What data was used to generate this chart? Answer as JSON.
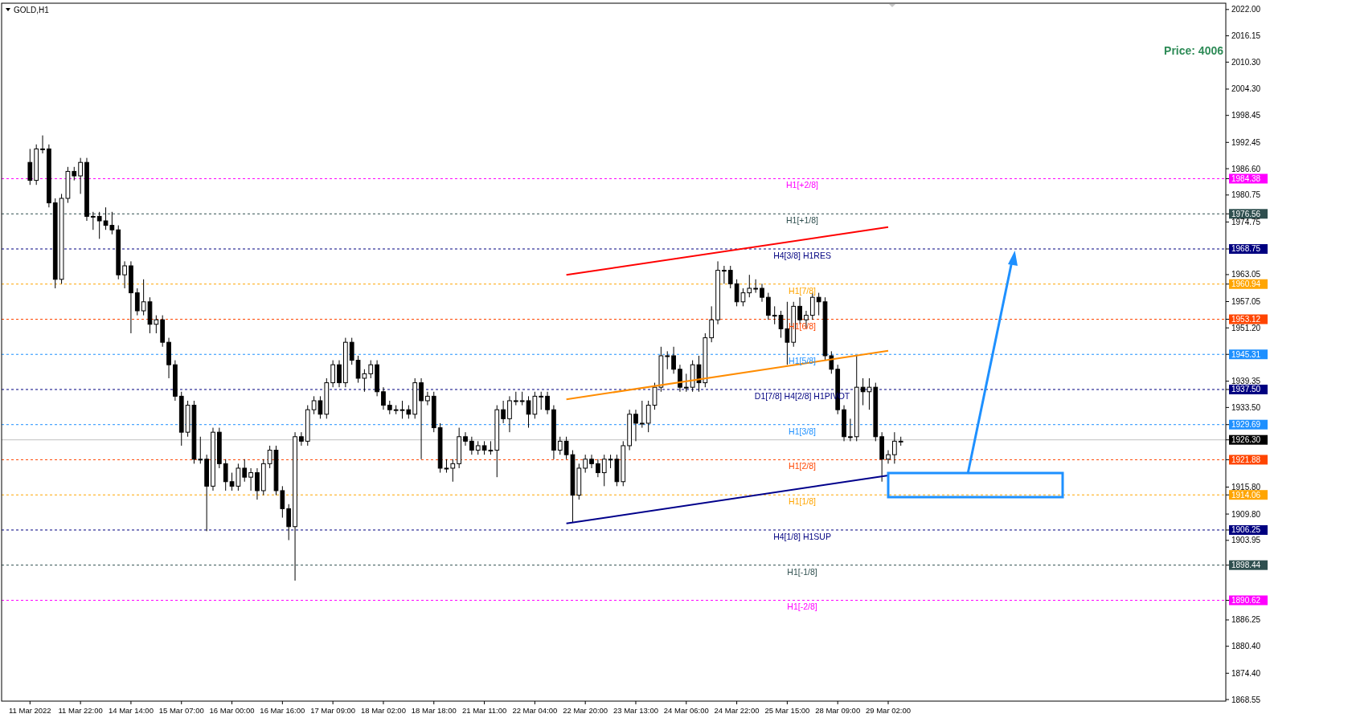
{
  "chart_data": {
    "type": "candlestick",
    "title": "GOLD,H1",
    "annotations": [
      "Price: 4006"
    ],
    "categories": [
      null,
      null,
      null,
      null,
      "11 Mar 2022",
      null,
      null,
      null,
      null,
      null,
      null,
      null,
      "11 Mar 22:00",
      null,
      null,
      null,
      null,
      null,
      null,
      null,
      "14 Mar 14:00",
      null,
      null,
      null,
      null,
      null,
      null,
      null,
      "15 Mar 07:00",
      null,
      null,
      null,
      null,
      null,
      null,
      null,
      "16 Mar 00:00",
      null,
      null,
      null,
      null,
      null,
      null,
      null,
      "16 Mar 16:00",
      null,
      null,
      null,
      null,
      null,
      null,
      null,
      "17 Mar 09:00",
      null,
      null,
      null,
      null,
      null,
      null,
      null,
      "18 Mar 02:00",
      null,
      null,
      null,
      null,
      null,
      null,
      null,
      "18 Mar 18:00",
      null,
      null,
      null,
      null,
      null,
      null,
      null,
      "21 Mar 11:00",
      null,
      null,
      null,
      null,
      null,
      null,
      null,
      "22 Mar 04:00",
      null,
      null,
      null,
      null,
      null,
      null,
      null,
      "22 Mar 20:00",
      null,
      null,
      null,
      null,
      null,
      null,
      null,
      "23 Mar 13:00",
      null,
      null,
      null,
      null,
      null,
      null,
      null,
      "24 Mar 06:00",
      null,
      null,
      null,
      null,
      null,
      null,
      null,
      "24 Mar 22:00",
      null,
      null,
      null,
      null,
      null,
      null,
      null,
      "25 Mar 15:00",
      null,
      null,
      null,
      null,
      null,
      null,
      null,
      "28 Mar 09:00",
      null,
      null,
      null,
      null,
      null,
      null,
      null,
      "29 Mar 02:00",
      null,
      null,
      null,
      null,
      null,
      null,
      null,
      null,
      null,
      null,
      null,
      null,
      null,
      null,
      null,
      null,
      null,
      null,
      null,
      null,
      null,
      null,
      null,
      null,
      null,
      null,
      null,
      null,
      null,
      null,
      null,
      null,
      null,
      null,
      null,
      null,
      null,
      null,
      null,
      null,
      null,
      null,
      null,
      null,
      null,
      null,
      null,
      null,
      null,
      null,
      null,
      null,
      null
    ],
    "ohlc": [
      null,
      null,
      null,
      null,
      [
        1988,
        1991,
        1983,
        1984
      ],
      [
        1984,
        1992,
        1983,
        1991
      ],
      [
        1991,
        1994,
        1990,
        1991
      ],
      [
        1991,
        1992,
        1978,
        1979
      ],
      [
        1979,
        1980,
        1960,
        1962
      ],
      [
        1962,
        1981,
        1961,
        1980
      ],
      [
        1980,
        1987,
        1979,
        1986
      ],
      [
        1986,
        1987,
        1984,
        1985
      ],
      [
        1985,
        1989,
        1981,
        1988
      ],
      [
        1988,
        1989,
        1975,
        1976
      ],
      [
        1976,
        1977,
        1973,
        1976
      ],
      [
        1976,
        1977,
        1971,
        1975
      ],
      [
        1975,
        1978,
        1973,
        1974
      ],
      [
        1974,
        1977,
        1972,
        1973
      ],
      [
        1973,
        1974,
        1962,
        1963
      ],
      [
        1963,
        1966,
        1960,
        1965
      ],
      [
        1965,
        1966,
        1950,
        1959
      ],
      [
        1959,
        1960,
        1954,
        1955
      ],
      [
        1955,
        1962,
        1954,
        1957
      ],
      [
        1957,
        1958,
        1950,
        1952
      ],
      [
        1952,
        1954,
        1950,
        1953
      ],
      [
        1953,
        1954,
        1947,
        1948
      ],
      [
        1948,
        1949,
        1940,
        1943
      ],
      [
        1943,
        1944,
        1935,
        1936
      ],
      [
        1936,
        1937,
        1925,
        1928
      ],
      [
        1928,
        1935,
        1927,
        1934
      ],
      [
        1934,
        1935,
        1921,
        1922
      ],
      [
        1922,
        1927,
        1921,
        1922
      ],
      [
        1922,
        1923,
        1906,
        1916
      ],
      [
        1916,
        1929,
        1915,
        1928
      ],
      [
        1928,
        1929,
        1920,
        1921
      ],
      [
        1921,
        1922,
        1915,
        1917
      ],
      [
        1917,
        1919,
        1915,
        1916
      ],
      [
        1916,
        1921,
        1915,
        1920
      ],
      [
        1920,
        1922,
        1917,
        1918
      ],
      [
        1918,
        1920,
        1915,
        1919
      ],
      [
        1919,
        1920,
        1913,
        1915
      ],
      [
        1915,
        1922,
        1914,
        1921
      ],
      [
        1921,
        1925,
        1920,
        1924
      ],
      [
        1924,
        1925,
        1914,
        1915
      ],
      [
        1915,
        1916,
        1909,
        1911
      ],
      [
        1911,
        1912,
        1904,
        1907
      ],
      [
        1907,
        1928,
        1895,
        1927
      ],
      [
        1927,
        1928,
        1925,
        1926
      ],
      [
        1926,
        1934,
        1925,
        1933
      ],
      [
        1933,
        1936,
        1932,
        1935
      ],
      [
        1935,
        1936,
        1931,
        1932
      ],
      [
        1932,
        1940,
        1931,
        1939
      ],
      [
        1939,
        1944,
        1938,
        1943
      ],
      [
        1943,
        1944,
        1938,
        1939
      ],
      [
        1939,
        1949,
        1938,
        1948
      ],
      [
        1948,
        1949,
        1943,
        1944
      ],
      [
        1944,
        1945,
        1939,
        1940
      ],
      [
        1940,
        1942,
        1937,
        1941
      ],
      [
        1941,
        1944,
        1940,
        1943
      ],
      [
        1943,
        1944,
        1936,
        1937
      ],
      [
        1937,
        1938,
        1933,
        1934
      ],
      [
        1934,
        1935,
        1932,
        1933
      ],
      [
        1933,
        1934,
        1932,
        1933
      ],
      [
        1933,
        1935,
        1931,
        1933
      ],
      [
        1933,
        1934,
        1931,
        1932
      ],
      [
        1932,
        1940,
        1931,
        1939
      ],
      [
        1939,
        1940,
        1922,
        1935
      ],
      [
        1935,
        1937,
        1934,
        1936
      ],
      [
        1936,
        1937,
        1928,
        1929
      ],
      [
        1929,
        1930,
        1919,
        1920
      ],
      [
        1920,
        1922,
        1919,
        1920
      ],
      [
        1920,
        1922,
        1917,
        1921
      ],
      [
        1921,
        1929,
        1920,
        1927
      ],
      [
        1927,
        1928,
        1925,
        1926
      ],
      [
        1926,
        1927,
        1923,
        1924
      ],
      [
        1924,
        1926,
        1923,
        1925
      ],
      [
        1925,
        1926,
        1923,
        1924
      ],
      [
        1924,
        1926,
        1923,
        1924
      ],
      [
        1924,
        1934,
        1918,
        1933
      ],
      [
        1933,
        1935,
        1930,
        1931
      ],
      [
        1931,
        1936,
        1928,
        1935
      ],
      [
        1935,
        1937,
        1934,
        1935
      ],
      [
        1935,
        1937,
        1934,
        1935
      ],
      [
        1935,
        1936,
        1929,
        1932
      ],
      [
        1932,
        1937,
        1931,
        1936
      ],
      [
        1936,
        1937,
        1933,
        1936
      ],
      [
        1936,
        1937,
        1932,
        1933
      ],
      [
        1933,
        1934,
        1922,
        1924
      ],
      [
        1924,
        1927,
        1923,
        1926
      ],
      [
        1926,
        1927,
        1922,
        1923
      ],
      [
        1923,
        1924,
        1908,
        1914
      ],
      [
        1914,
        1921,
        1913,
        1920
      ],
      [
        1920,
        1923,
        1919,
        1922
      ],
      [
        1922,
        1923,
        1920,
        1921
      ],
      [
        1921,
        1922,
        1918,
        1919
      ],
      [
        1919,
        1923,
        1916,
        1922
      ],
      [
        1922,
        1923,
        1920,
        1922
      ],
      [
        1922,
        1923,
        1916,
        1917
      ],
      [
        1917,
        1926,
        1916,
        1925
      ],
      [
        1925,
        1933,
        1924,
        1932
      ],
      [
        1932,
        1933,
        1926,
        1930
      ],
      [
        1930,
        1935,
        1929,
        1930
      ],
      [
        1930,
        1935,
        1928,
        1934
      ],
      [
        1934,
        1939,
        1933,
        1938
      ],
      [
        1938,
        1947,
        1937,
        1945
      ],
      [
        1945,
        1946,
        1942,
        1945
      ],
      [
        1945,
        1947,
        1941,
        1942
      ],
      [
        1942,
        1943,
        1937,
        1938
      ],
      [
        1938,
        1941,
        1937,
        1938
      ],
      [
        1938,
        1944,
        1937,
        1943
      ],
      [
        1943,
        1945,
        1937,
        1939
      ],
      [
        1939,
        1950,
        1938,
        1949
      ],
      [
        1949,
        1956,
        1948,
        1953
      ],
      [
        1953,
        1966,
        1952,
        1964
      ],
      [
        1964,
        1965,
        1961,
        1964
      ],
      [
        1964,
        1965,
        1960,
        1961
      ],
      [
        1961,
        1962,
        1956,
        1957
      ],
      [
        1957,
        1960,
        1956,
        1959
      ],
      [
        1959,
        1963,
        1958,
        1960
      ],
      [
        1960,
        1962,
        1959,
        1960
      ],
      [
        1960,
        1961,
        1957,
        1958
      ],
      [
        1958,
        1959,
        1953,
        1954
      ],
      [
        1954,
        1956,
        1952,
        1954
      ],
      [
        1954,
        1955,
        1949,
        1951
      ],
      [
        1951,
        1957,
        1943,
        1948
      ],
      [
        1948,
        1957,
        1947,
        1956
      ],
      [
        1956,
        1958,
        1952,
        1953
      ],
      [
        1953,
        1955,
        1951,
        1954
      ],
      [
        1954,
        1959,
        1953,
        1958
      ],
      [
        1958,
        1959,
        1954,
        1957
      ],
      [
        1957,
        1958,
        1944,
        1945
      ],
      [
        1945,
        1946,
        1941,
        1942
      ],
      [
        1942,
        1943,
        1932,
        1933
      ],
      [
        1933,
        1934,
        1926,
        1927
      ],
      [
        1927,
        1931,
        1926,
        1927
      ],
      [
        1927,
        1945,
        1926,
        1938
      ],
      [
        1938,
        1940,
        1934,
        1937
      ],
      [
        1937,
        1940,
        1933,
        1938
      ],
      [
        1938,
        1939,
        1926,
        1927
      ],
      [
        1927,
        1928,
        1917,
        1922
      ],
      [
        1922,
        1924,
        1921,
        1923
      ],
      [
        1923,
        1928,
        1921,
        1926
      ],
      [
        1926,
        1927,
        1925,
        1926
      ],
      null,
      null,
      null,
      null,
      null,
      null,
      null,
      null,
      null,
      null,
      null,
      null,
      null,
      null,
      null,
      null,
      null,
      null,
      null,
      null,
      null,
      null,
      null,
      null,
      null,
      null,
      null,
      null,
      null,
      null,
      null,
      null,
      null,
      null,
      null,
      null,
      null,
      null,
      null,
      null,
      null,
      null,
      null,
      null,
      null,
      null,
      null,
      null,
      null,
      null,
      null
    ],
    "series": [
      {
        "type": "line",
        "color": "#ff0000",
        "values": [
          null,
          null,
          null,
          null,
          null,
          null,
          null,
          null,
          null,
          null,
          null,
          null,
          null,
          null,
          null,
          null,
          null,
          null,
          null,
          null,
          null,
          null,
          null,
          null,
          null,
          null,
          null,
          null,
          null,
          null,
          null,
          null,
          null,
          null,
          null,
          null,
          null,
          null,
          null,
          null,
          null,
          null,
          null,
          null,
          null,
          null,
          null,
          null,
          null,
          null,
          null,
          null,
          null,
          null,
          null,
          null,
          null,
          null,
          null,
          null,
          null,
          null,
          null,
          null,
          null,
          null,
          null,
          null,
          null,
          null,
          null,
          null,
          null,
          null,
          null,
          null,
          null,
          null,
          null,
          null,
          null,
          null,
          null,
          null,
          null,
          null,
          null,
          null,
          null,
          1963,
          null,
          null,
          null,
          null,
          null,
          null,
          null,
          null,
          null,
          null,
          null,
          null,
          null,
          null,
          null,
          null,
          null,
          null,
          null,
          null,
          null,
          null,
          null,
          null,
          null,
          null,
          null,
          null,
          null,
          null,
          null,
          null,
          null,
          null,
          null,
          null,
          null,
          null,
          null,
          null,
          null,
          null,
          null,
          null,
          null,
          null,
          null,
          null,
          null,
          null,
          1973.6,
          null,
          null,
          null,
          null,
          null,
          null,
          null,
          null,
          null,
          null,
          null,
          null,
          null,
          null,
          null,
          null,
          null,
          null,
          null,
          null,
          null,
          null,
          null,
          null,
          null,
          null,
          null,
          null,
          null,
          null,
          null,
          null,
          null,
          null,
          null,
          null,
          null,
          null,
          null,
          null,
          null,
          null,
          null,
          null,
          null,
          null,
          null,
          null,
          null,
          null,
          null,
          null,
          null
        ]
      },
      {
        "type": "line",
        "color": "#ff8c00",
        "values": [
          null,
          null,
          null,
          null,
          null,
          null,
          null,
          null,
          null,
          null,
          null,
          null,
          null,
          null,
          null,
          null,
          null,
          null,
          null,
          null,
          null,
          null,
          null,
          null,
          null,
          null,
          null,
          null,
          null,
          null,
          null,
          null,
          null,
          null,
          null,
          null,
          null,
          null,
          null,
          null,
          null,
          null,
          null,
          null,
          null,
          null,
          null,
          null,
          null,
          null,
          null,
          null,
          null,
          null,
          null,
          null,
          null,
          null,
          null,
          null,
          null,
          null,
          null,
          null,
          null,
          null,
          null,
          null,
          null,
          null,
          null,
          null,
          null,
          null,
          null,
          null,
          null,
          null,
          null,
          null,
          null,
          null,
          null,
          null,
          null,
          null,
          null,
          null,
          null,
          1935.3,
          null,
          null,
          null,
          null,
          null,
          null,
          null,
          null,
          null,
          null,
          null,
          null,
          null,
          null,
          null,
          null,
          null,
          null,
          null,
          null,
          null,
          null,
          null,
          null,
          null,
          null,
          null,
          null,
          null,
          null,
          null,
          null,
          null,
          null,
          null,
          null,
          null,
          null,
          null,
          null,
          null,
          null,
          null,
          null,
          null,
          null,
          null,
          null,
          null,
          null,
          1946.1,
          null,
          null,
          null,
          null,
          null,
          null,
          null,
          null,
          null,
          null,
          null,
          null,
          null,
          null,
          null,
          null,
          null,
          null,
          null,
          null,
          null,
          null,
          null,
          null,
          null,
          null,
          null,
          null,
          null,
          null,
          null,
          null,
          null,
          null,
          null,
          null,
          null,
          null,
          null,
          null,
          null,
          null,
          null,
          null,
          null,
          null,
          null,
          null,
          null,
          null,
          null,
          null,
          null
        ]
      },
      {
        "type": "line",
        "color": "#00008b",
        "values": [
          null,
          null,
          null,
          null,
          null,
          null,
          null,
          null,
          null,
          null,
          null,
          null,
          null,
          null,
          null,
          null,
          null,
          null,
          null,
          null,
          null,
          null,
          null,
          null,
          null,
          null,
          null,
          null,
          null,
          null,
          null,
          null,
          null,
          null,
          null,
          null,
          null,
          null,
          null,
          null,
          null,
          null,
          null,
          null,
          null,
          null,
          null,
          null,
          null,
          null,
          null,
          null,
          null,
          null,
          null,
          null,
          null,
          null,
          null,
          null,
          null,
          null,
          null,
          null,
          null,
          null,
          null,
          null,
          null,
          null,
          null,
          null,
          null,
          null,
          null,
          null,
          null,
          null,
          null,
          null,
          null,
          null,
          null,
          null,
          null,
          null,
          null,
          null,
          null,
          1907.7,
          null,
          null,
          null,
          null,
          null,
          null,
          null,
          null,
          null,
          null,
          null,
          null,
          null,
          null,
          null,
          null,
          null,
          null,
          null,
          null,
          null,
          null,
          null,
          null,
          null,
          null,
          null,
          null,
          null,
          null,
          null,
          null,
          null,
          null,
          null,
          null,
          null,
          null,
          null,
          null,
          null,
          null,
          null,
          null,
          null,
          null,
          null,
          null,
          null,
          null,
          1918.4,
          null,
          null,
          null,
          null,
          null,
          null,
          null,
          null,
          null,
          null,
          null,
          null,
          null,
          null,
          null,
          null,
          null,
          null,
          null,
          null,
          null,
          null,
          null,
          null,
          null,
          null,
          null,
          null,
          null,
          null,
          null,
          null,
          null,
          null,
          null,
          null,
          null,
          null,
          null,
          null,
          null,
          null,
          null,
          null,
          null,
          null,
          null,
          null,
          null,
          null,
          null,
          null,
          null
        ]
      }
    ],
    "ylim": [
      1868.2,
      2023.4
    ],
    "yticks": [
      {
        "value": 2022,
        "label": "2022.00"
      },
      2016.15,
      {
        "value": 2010.3,
        "label": "2010.30"
      },
      {
        "value": 2004.3,
        "label": "2004.30"
      },
      1998.45,
      1992.45,
      {
        "value": 1986.6,
        "label": "1986.60"
      },
      1984.38,
      1980.75,
      1976.56,
      1974.75,
      1968.75,
      1963.05,
      1960.94,
      1957.05,
      1953.12,
      {
        "value": 1951.2,
        "label": "1951.20"
      },
      1945.31,
      1939.35,
      {
        "value": 1937.5,
        "label": "1937.50"
      },
      {
        "value": 1933.5,
        "label": "1933.50"
      },
      1929.69,
      {
        "value": 1926.3,
        "label": "1926.30"
      },
      1921.88,
      {
        "value": 1915.8,
        "label": "1915.80"
      },
      1914.06,
      {
        "value": 1909.8,
        "label": "1909.80"
      },
      1906.25,
      1903.95,
      1898.44,
      1890.62,
      1886.25,
      {
        "value": 1880.4,
        "label": "1880.40"
      },
      {
        "value": 1874.4,
        "label": "1874.40"
      },
      1868.55
    ],
    "ref_lines": [
      {
        "axis": "y",
        "value": 1984.38,
        "label": "H1[+2/8]",
        "color": "#ff00ff",
        "line_style": "dashed"
      },
      {
        "axis": "y",
        "value": 1976.56,
        "label": "H1[+1/8]",
        "color": "#2f4f4f",
        "line_style": "dashed"
      },
      {
        "axis": "y",
        "value": 1968.75,
        "label": "H4[3/8] H1RES",
        "color": "#000080",
        "line_style": "dashed"
      },
      {
        "axis": "y",
        "value": 1960.94,
        "label": "H1[7/8]",
        "color": "#ffa500",
        "line_style": "dashed"
      },
      {
        "axis": "y",
        "value": 1953.12,
        "label": "H1[6/8]",
        "color": "#ff4500",
        "line_style": "dashed"
      },
      {
        "axis": "y",
        "value": 1945.31,
        "label": "H1[5/8]",
        "color": "#1e90ff",
        "line_style": "dashed"
      },
      {
        "axis": "y",
        "value": 1937.5,
        "label": "D1[7/8] H4[2/8] H1PIVOT",
        "color": "#000080",
        "line_style": "dashed"
      },
      {
        "axis": "y",
        "value": 1929.69,
        "label": "H1[3/8]",
        "color": "#1e90ff",
        "line_style": "dashed"
      },
      {
        "axis": "y",
        "value": 1926.3,
        "label": null,
        "color": "#c0c0c0",
        "line_style": "solid"
      },
      {
        "axis": "y",
        "value": 1921.88,
        "label": "H1[2/8]",
        "color": "#ff4500",
        "line_style": "dashed"
      },
      {
        "axis": "y",
        "value": 1914.06,
        "label": "H1[1/8]",
        "color": "#ffa500",
        "line_style": "dashed"
      },
      {
        "axis": "y",
        "value": 1906.25,
        "label": "H4[1/8] H1SUP",
        "color": "#000080",
        "line_style": "dashed"
      },
      {
        "axis": "y",
        "value": 1898.44,
        "label": "H1[-1/8]",
        "color": "#2f4f4f",
        "line_style": "dashed"
      },
      {
        "axis": "y",
        "value": 1890.62,
        "label": "H1[-2/8]",
        "color": "#ff00ff",
        "line_style": "dashed"
      }
    ]
  }
}
